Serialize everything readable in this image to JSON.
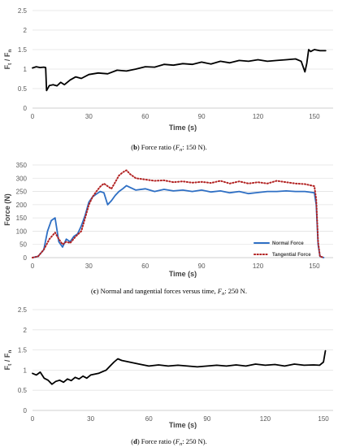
{
  "chart_data": [
    {
      "type": "line",
      "caption": {
        "letter": "b",
        "pre": " Force ratio (",
        "sym": "F",
        "sub": "n",
        "post": ": 150 N)."
      },
      "ylabel": {
        "main": "F",
        "sub1": "t",
        "mid": " / F",
        "sub2": "n"
      },
      "xlabel": "Time (s)",
      "xlim": [
        0,
        160
      ],
      "ylim": [
        0,
        2.5
      ],
      "xticks": [
        0,
        30,
        60,
        90,
        120,
        150
      ],
      "yticks": [
        0,
        0.5,
        1,
        1.5,
        2,
        2.5
      ],
      "ytick_labels": [
        "0",
        "0.5",
        "1",
        "1.5",
        "2",
        "2.5"
      ],
      "grid": "horizontal",
      "series": [
        {
          "color": "#000000",
          "x": [
            0,
            2,
            4,
            6,
            7,
            7.5,
            9,
            11,
            13,
            15,
            17,
            20,
            23,
            26,
            30,
            35,
            40,
            45,
            50,
            55,
            60,
            65,
            70,
            75,
            80,
            85,
            90,
            95,
            100,
            105,
            110,
            115,
            120,
            125,
            130,
            135,
            140,
            143,
            145,
            146,
            147,
            148,
            150,
            153,
            156
          ],
          "y": [
            1.03,
            1.06,
            1.04,
            1.05,
            1.04,
            0.45,
            0.58,
            0.6,
            0.57,
            0.66,
            0.6,
            0.72,
            0.8,
            0.76,
            0.86,
            0.9,
            0.88,
            0.97,
            0.95,
            1.0,
            1.06,
            1.05,
            1.12,
            1.1,
            1.14,
            1.12,
            1.18,
            1.13,
            1.2,
            1.16,
            1.22,
            1.2,
            1.24,
            1.2,
            1.22,
            1.24,
            1.26,
            1.2,
            0.93,
            1.15,
            1.5,
            1.45,
            1.5,
            1.47,
            1.47
          ]
        }
      ]
    },
    {
      "type": "line",
      "caption": {
        "letter": "c",
        "pre": " Normal and tangential forces versus time, ",
        "sym": "F",
        "sub": "n",
        "post": ": 250 N."
      },
      "ylabel": {
        "main": "Force (N)"
      },
      "xlabel": "Time (s)",
      "xlim": [
        0,
        160
      ],
      "ylim": [
        0,
        350
      ],
      "xticks": [
        0,
        30,
        60,
        90,
        120,
        150
      ],
      "yticks": [
        0,
        50,
        100,
        150,
        200,
        250,
        300,
        350
      ],
      "ytick_labels": [
        "0",
        "50",
        "100",
        "150",
        "200",
        "250",
        "300",
        "350"
      ],
      "grid": "horizontal",
      "legend": "bottom-right",
      "series": [
        {
          "name": "Normal Force",
          "color": "#2e6fc4",
          "style": "solid",
          "x": [
            0,
            3,
            6,
            8,
            10,
            12,
            14,
            16,
            18,
            20,
            22,
            24,
            26,
            28,
            30,
            32,
            34,
            36,
            38,
            40,
            42,
            44,
            46,
            48,
            50,
            52,
            55,
            60,
            65,
            70,
            75,
            80,
            85,
            90,
            95,
            100,
            105,
            110,
            115,
            120,
            125,
            130,
            135,
            140,
            145,
            150,
            151,
            152,
            153,
            155
          ],
          "y": [
            0,
            5,
            30,
            100,
            140,
            150,
            60,
            40,
            70,
            60,
            80,
            90,
            120,
            160,
            210,
            230,
            240,
            250,
            245,
            200,
            215,
            235,
            250,
            260,
            272,
            265,
            255,
            260,
            250,
            258,
            252,
            255,
            250,
            255,
            248,
            252,
            245,
            250,
            242,
            246,
            250,
            250,
            252,
            250,
            250,
            245,
            200,
            50,
            5,
            0
          ]
        },
        {
          "name": "Tangential Force",
          "color": "#b22222",
          "style": "dotted",
          "x": [
            0,
            3,
            6,
            9,
            12,
            14,
            16,
            18,
            20,
            23,
            26,
            28,
            30,
            32,
            34,
            36,
            38,
            40,
            42,
            44,
            46,
            48,
            50,
            52,
            55,
            60,
            65,
            70,
            75,
            80,
            85,
            90,
            95,
            100,
            105,
            110,
            115,
            120,
            125,
            130,
            135,
            140,
            145,
            150,
            151,
            152,
            153,
            155
          ],
          "y": [
            0,
            5,
            30,
            70,
            95,
            70,
            50,
            60,
            55,
            80,
            100,
            150,
            200,
            230,
            250,
            268,
            280,
            270,
            260,
            285,
            310,
            322,
            330,
            315,
            300,
            295,
            290,
            292,
            285,
            288,
            283,
            286,
            282,
            290,
            280,
            288,
            280,
            285,
            280,
            290,
            285,
            280,
            278,
            270,
            220,
            60,
            5,
            0
          ]
        }
      ]
    },
    {
      "type": "line",
      "caption": {
        "letter": "d",
        "pre": " Force ratio (",
        "sym": "F",
        "sub": "n",
        "post": ": 250 N)."
      },
      "ylabel": {
        "main": "F",
        "sub1": "t",
        "mid": " / F",
        "sub2": "n"
      },
      "xlabel": "Time (s)",
      "xlim": [
        0,
        155
      ],
      "ylim": [
        0,
        2.5
      ],
      "xticks": [
        0,
        30,
        60,
        90,
        120,
        150
      ],
      "yticks": [
        0,
        0.5,
        1,
        1.5,
        2,
        2.5
      ],
      "ytick_labels": [
        "0",
        "0.5",
        "1",
        "1.5",
        "2",
        "2.5"
      ],
      "grid": "horizontal",
      "series": [
        {
          "color": "#000000",
          "x": [
            0,
            2,
            4,
            6,
            8,
            10,
            12,
            14,
            16,
            18,
            20,
            22,
            24,
            26,
            28,
            30,
            34,
            38,
            40,
            42,
            44,
            46,
            48,
            50,
            55,
            60,
            65,
            70,
            75,
            80,
            85,
            90,
            95,
            100,
            105,
            110,
            115,
            120,
            125,
            130,
            135,
            140,
            145,
            148,
            150,
            151
          ],
          "y": [
            0.92,
            0.88,
            0.95,
            0.8,
            0.75,
            0.65,
            0.72,
            0.75,
            0.7,
            0.78,
            0.74,
            0.82,
            0.78,
            0.85,
            0.8,
            0.88,
            0.92,
            1.0,
            1.1,
            1.2,
            1.28,
            1.24,
            1.22,
            1.2,
            1.15,
            1.1,
            1.13,
            1.1,
            1.12,
            1.1,
            1.08,
            1.1,
            1.12,
            1.1,
            1.13,
            1.1,
            1.15,
            1.12,
            1.14,
            1.1,
            1.15,
            1.12,
            1.13,
            1.12,
            1.2,
            1.48
          ]
        }
      ]
    }
  ]
}
